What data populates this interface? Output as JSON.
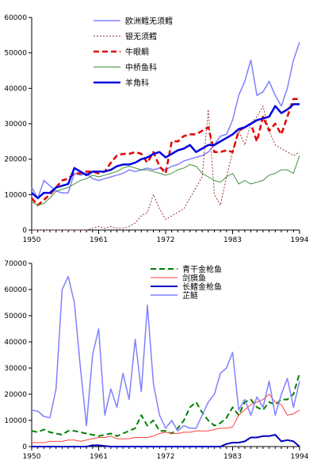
{
  "chart_data": [
    {
      "type": "line",
      "x": [
        1950,
        1951,
        1952,
        1953,
        1954,
        1955,
        1956,
        1957,
        1958,
        1959,
        1960,
        1961,
        1962,
        1963,
        1964,
        1965,
        1966,
        1967,
        1968,
        1969,
        1970,
        1971,
        1972,
        1973,
        1974,
        1975,
        1976,
        1977,
        1978,
        1979,
        1980,
        1981,
        1982,
        1983,
        1984,
        1985,
        1986,
        1987,
        1988,
        1989,
        1990,
        1991,
        1992,
        1993,
        1994
      ],
      "xticks": [
        "1950",
        "1961",
        "1972",
        "1983",
        "1994"
      ],
      "xtick_values": [
        1950,
        1961,
        1972,
        1983,
        1994
      ],
      "ylim": [
        0,
        60000
      ],
      "yticks": [
        "0",
        "10000",
        "20000",
        "30000",
        "40000",
        "50000",
        "60000"
      ],
      "ytick_values": [
        0,
        10000,
        20000,
        30000,
        40000,
        50000,
        60000
      ],
      "legend_position": "top-right",
      "series": [
        {
          "name": "欧洲鳕无须鳕",
          "color": "#8080ff",
          "style": "solid",
          "width": 1.5,
          "values": [
            12000,
            9000,
            14000,
            12500,
            11000,
            10500,
            10500,
            16000,
            15500,
            16000,
            14500,
            14000,
            14500,
            15000,
            15500,
            16000,
            17000,
            16500,
            17000,
            17500,
            17000,
            17500,
            17000,
            18000,
            18500,
            19500,
            20000,
            20500,
            21000,
            22000,
            24000,
            26500,
            27000,
            31000,
            38000,
            42000,
            48000,
            38000,
            39000,
            42000,
            38000,
            35000,
            40000,
            48000,
            53000
          ]
        },
        {
          "name": "银无须鳕",
          "color": "#993333",
          "style": "dotted",
          "width": 1,
          "values": [
            0,
            0,
            0,
            0,
            0,
            0,
            0,
            0,
            0,
            0,
            500,
            1000,
            500,
            1000,
            500,
            500,
            1000,
            2000,
            4000,
            5000,
            10000,
            6000,
            3000,
            4000,
            5000,
            6000,
            9000,
            12000,
            15000,
            34000,
            10000,
            7000,
            15000,
            22000,
            28000,
            24000,
            30000,
            32000,
            35000,
            28000,
            24000,
            23000,
            22000,
            21000,
            22000
          ]
        },
        {
          "name": "牛眼鲷",
          "color": "#e00000",
          "style": "dashed",
          "width": 2.5,
          "values": [
            9000,
            7000,
            8500,
            10000,
            12000,
            14000,
            14500,
            16000,
            16000,
            16500,
            16500,
            16000,
            16500,
            19000,
            21000,
            21500,
            21500,
            22000,
            21500,
            19000,
            22000,
            18000,
            16000,
            25000,
            25000,
            26500,
            27000,
            27000,
            28000,
            29000,
            22000,
            22000,
            22500,
            22000,
            28000,
            29000,
            30000,
            25000,
            32000,
            28000,
            30000,
            27000,
            32000,
            37000,
            37000
          ]
        },
        {
          "name": "中桥鱼科",
          "color": "#409040",
          "style": "solid",
          "width": 1,
          "values": [
            8000,
            7000,
            7500,
            9000,
            11000,
            11500,
            12000,
            13000,
            14000,
            14500,
            15500,
            15000,
            15500,
            16000,
            16500,
            17500,
            18000,
            17500,
            17000,
            17000,
            16500,
            16000,
            15500,
            16000,
            17000,
            17500,
            18500,
            18000,
            16000,
            15000,
            14000,
            13500,
            15000,
            16000,
            13000,
            14000,
            13000,
            13500,
            14000,
            15500,
            16000,
            17000,
            17000,
            16000,
            21000
          ]
        },
        {
          "name": "羊角科",
          "color": "#0000e0",
          "style": "solid",
          "width": 2.5,
          "values": [
            10500,
            9000,
            10500,
            10500,
            12000,
            12500,
            13000,
            17500,
            16500,
            15500,
            16500,
            16500,
            16500,
            17000,
            18000,
            18500,
            18500,
            19000,
            20000,
            20500,
            21500,
            22000,
            20500,
            21500,
            22500,
            23000,
            24000,
            22000,
            23000,
            24000,
            24000,
            25000,
            26000,
            27000,
            28500,
            29000,
            30000,
            31000,
            31500,
            32000,
            35000,
            33000,
            34000,
            35500,
            35500
          ]
        }
      ]
    },
    {
      "type": "line",
      "x": [
        1950,
        1951,
        1952,
        1953,
        1954,
        1955,
        1956,
        1957,
        1958,
        1959,
        1960,
        1961,
        1962,
        1963,
        1964,
        1965,
        1966,
        1967,
        1968,
        1969,
        1970,
        1971,
        1972,
        1973,
        1974,
        1975,
        1976,
        1977,
        1978,
        1979,
        1980,
        1981,
        1982,
        1983,
        1984,
        1985,
        1986,
        1987,
        1988,
        1989,
        1990,
        1991,
        1992,
        1993,
        1994
      ],
      "xticks": [
        "1950",
        "1961",
        "1972",
        "1983",
        "1994"
      ],
      "xtick_values": [
        1950,
        1961,
        1972,
        1983,
        1994
      ],
      "ylim": [
        0,
        70000
      ],
      "yticks": [
        "0",
        "10000",
        "20000",
        "30000",
        "40000",
        "50000",
        "60000",
        "70000"
      ],
      "ytick_values": [
        0,
        10000,
        20000,
        30000,
        40000,
        50000,
        60000,
        70000
      ],
      "legend_position": "top-right",
      "series": [
        {
          "name": "青干金枪鱼",
          "color": "#008000",
          "style": "dashed",
          "width": 2,
          "values": [
            6000,
            5500,
            6500,
            5500,
            5000,
            4500,
            6000,
            6000,
            5500,
            5000,
            4500,
            4000,
            4500,
            5000,
            4000,
            5000,
            6000,
            7000,
            12000,
            8000,
            10000,
            6000,
            6000,
            5000,
            7000,
            10000,
            15000,
            17000,
            13000,
            10000,
            8000,
            9000,
            11000,
            15000,
            12000,
            17000,
            18000,
            15000,
            14000,
            17000,
            16000,
            18000,
            18000,
            20000,
            28000
          ]
        },
        {
          "name": "剑旗鱼",
          "color": "#ff4040",
          "style": "solid",
          "width": 1,
          "values": [
            1500,
            1500,
            1500,
            2000,
            2000,
            2000,
            2500,
            2500,
            2000,
            2500,
            3000,
            3500,
            3500,
            4000,
            3000,
            3000,
            3000,
            3500,
            3500,
            3500,
            4000,
            5000,
            5500,
            5000,
            5000,
            5500,
            5500,
            6000,
            6000,
            6000,
            6500,
            7000,
            7000,
            7500,
            12000,
            14000,
            16000,
            17000,
            18000,
            20000,
            17000,
            16000,
            12000,
            12500,
            14000
          ]
        },
        {
          "name": "长鳍金枪鱼",
          "color": "#0000c0",
          "style": "solid",
          "width": 2,
          "values": [
            0,
            0,
            0,
            0,
            0,
            0,
            0,
            0,
            0,
            0,
            500,
            500,
            200,
            0,
            0,
            0,
            0,
            0,
            0,
            0,
            0,
            0,
            0,
            0,
            0,
            0,
            0,
            0,
            0,
            0,
            0,
            0,
            1000,
            1500,
            1500,
            2000,
            3500,
            3500,
            4000,
            4000,
            4500,
            2000,
            2500,
            2000,
            0
          ]
        },
        {
          "name": "芷鲢",
          "color": "#8080ff",
          "style": "solid",
          "width": 1.5,
          "values": [
            14000,
            13500,
            11500,
            11000,
            22000,
            60000,
            65000,
            55000,
            30000,
            8000,
            35000,
            45000,
            12000,
            22000,
            15000,
            28000,
            18000,
            41000,
            21000,
            54000,
            24000,
            12000,
            7000,
            10000,
            6000,
            8000,
            7000,
            7000,
            12000,
            17000,
            20000,
            28000,
            30000,
            36000,
            14000,
            18000,
            12000,
            19000,
            15000,
            25000,
            12000,
            20000,
            26000,
            15000,
            25000
          ]
        }
      ]
    }
  ]
}
